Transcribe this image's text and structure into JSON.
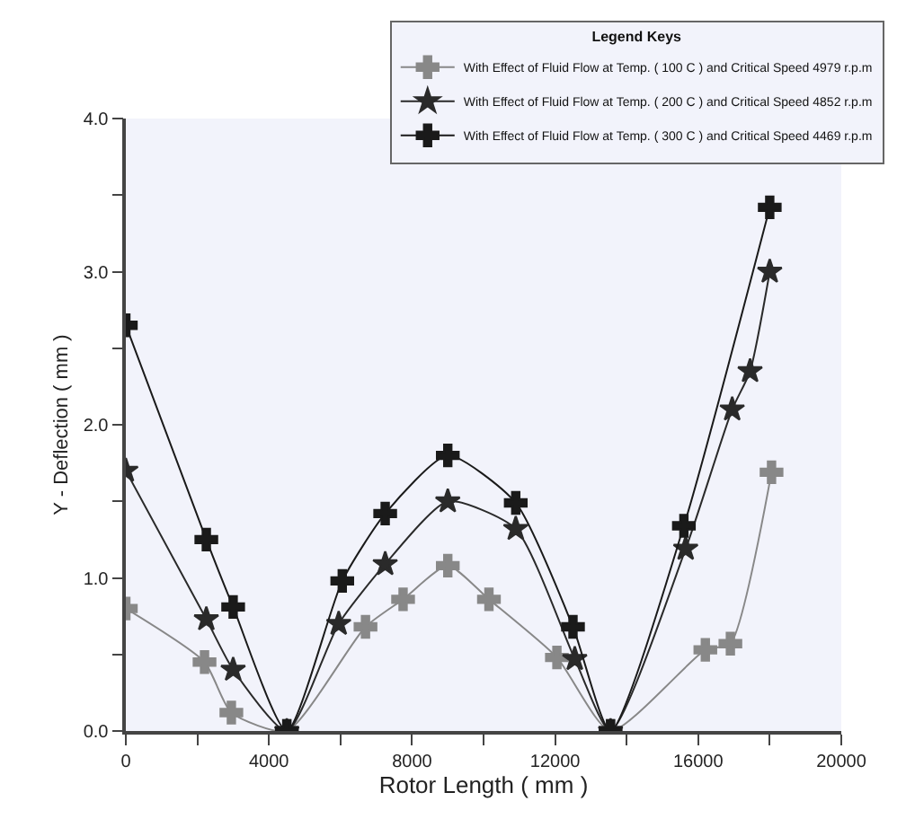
{
  "chart_data": {
    "type": "line",
    "xlabel": "Rotor Length ( mm )",
    "ylabel": "Y - Deflection ( mm )",
    "legend_title": "Legend Keys",
    "legend": "top right",
    "grid": false,
    "xlim": [
      0,
      20000
    ],
    "ylim": [
      0,
      4.0
    ],
    "xticks": [
      0,
      {
        "value": 2000,
        "label": null
      },
      4000,
      {
        "value": 6000,
        "label": null
      },
      8000,
      {
        "value": 10000,
        "label": null
      },
      12000,
      {
        "value": 14000,
        "label": null
      },
      16000,
      {
        "value": 18000,
        "label": null
      },
      20000
    ],
    "yticks": [
      {
        "value": 0,
        "label": "0.0"
      },
      {
        "value": 0.5,
        "label": null
      },
      {
        "value": 1,
        "label": "1.0"
      },
      {
        "value": 1.5,
        "label": null
      },
      {
        "value": 2,
        "label": "2.0"
      },
      {
        "value": 2.5,
        "label": null
      },
      {
        "value": 3,
        "label": "3.0"
      },
      {
        "value": 3.5,
        "label": null
      },
      {
        "value": 4,
        "label": "4.0"
      }
    ],
    "series": [
      {
        "name": "With Effect of Fluid Flow at Temp. ( 100 C ) and Critical Speed 4979 r.p.m",
        "color": "#888888",
        "marker": "cross",
        "x": [
          0,
          2200,
          2950,
          4500,
          6700,
          7750,
          9000,
          10150,
          12050,
          13550,
          16200,
          16900,
          18050
        ],
        "values": [
          0.8,
          0.45,
          0.12,
          0,
          0.68,
          0.86,
          1.08,
          0.86,
          0.48,
          0,
          0.53,
          0.57,
          1.69
        ]
      },
      {
        "name": "With Effect of Fluid Flow at Temp. ( 200 C ) and Critical Speed 4852 r.p.m",
        "color": "#2a2a2a",
        "marker": "star",
        "x": [
          0,
          2250,
          3000,
          4500,
          5950,
          7250,
          9000,
          10900,
          12550,
          13550,
          15650,
          16950,
          17450,
          18000
        ],
        "values": [
          1.7,
          0.73,
          0.4,
          0,
          0.7,
          1.09,
          1.5,
          1.32,
          0.47,
          0,
          1.19,
          2.1,
          2.35,
          3.0
        ]
      },
      {
        "name": "With Effect of Fluid Flow at Temp. ( 300 C ) and Critical Speed 4469 r.p.m",
        "color": "#1a1a1a",
        "marker": "cross",
        "x": [
          0,
          2250,
          3000,
          4500,
          6050,
          7250,
          9000,
          10900,
          12500,
          13550,
          15600,
          18000
        ],
        "values": [
          2.65,
          1.25,
          0.81,
          0,
          0.98,
          1.42,
          1.8,
          1.49,
          0.68,
          0,
          1.34,
          3.42
        ]
      }
    ]
  }
}
